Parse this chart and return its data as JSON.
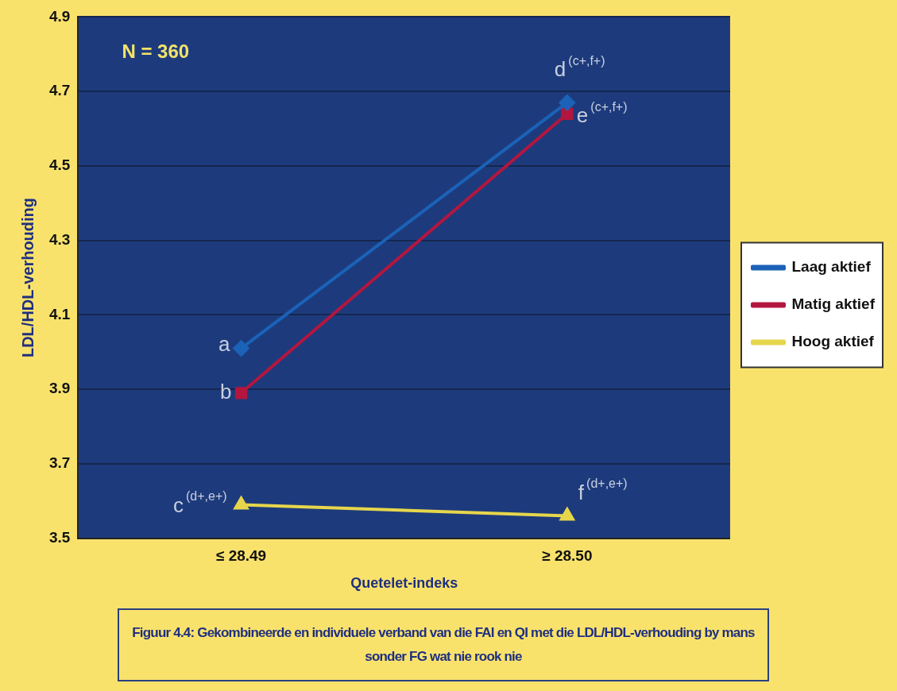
{
  "chart_data": {
    "type": "line",
    "title": "Figuur 4.4: Gekombineerde en individuele  verband van die FAI en QI met die LDL/HDL-verhouding by mans sonder FG  wat nie rook nie",
    "xlabel": "Quetelet-indeks",
    "ylabel": "LDL/HDL-verhouding",
    "categories": [
      "≤ 28.49",
      "≥ 28.50"
    ],
    "series": [
      {
        "name": "Laag aktief",
        "color": "#1b62b8",
        "values": [
          4.01,
          4.67
        ],
        "marker": "diamond"
      },
      {
        "name": "Matig aktief",
        "color": "#b3163f",
        "values": [
          3.89,
          4.64
        ],
        "marker": "square"
      },
      {
        "name": "Hoog aktief",
        "color": "#e6d64c",
        "values": [
          3.59,
          3.56
        ],
        "marker": "triangle"
      }
    ],
    "ylim": [
      3.5,
      4.9
    ],
    "yticks": [
      3.5,
      3.7,
      3.9,
      4.1,
      4.3,
      4.5,
      4.7,
      4.9
    ],
    "grid": "y",
    "legend": "right",
    "annotations": [
      "N = 360",
      {
        "text": "a",
        "x": "≤ 28.49",
        "y": 4.01
      },
      {
        "text": "b",
        "x": "≤ 28.49",
        "y": 3.89
      },
      {
        "text": "c$^{(d+,e+)}$",
        "x": "≤ 28.49",
        "y": 3.59
      },
      {
        "text": "d$^{(c+,f+)}$",
        "x": "≥ 28.50",
        "y": 4.67
      },
      {
        "text": "e$^{(c+,f+)}$",
        "x": "≥ 28.50",
        "y": 4.64
      },
      {
        "text": "f$^{(d+,e+)}$",
        "x": "≥ 28.50",
        "y": 3.56
      }
    ]
  }
}
